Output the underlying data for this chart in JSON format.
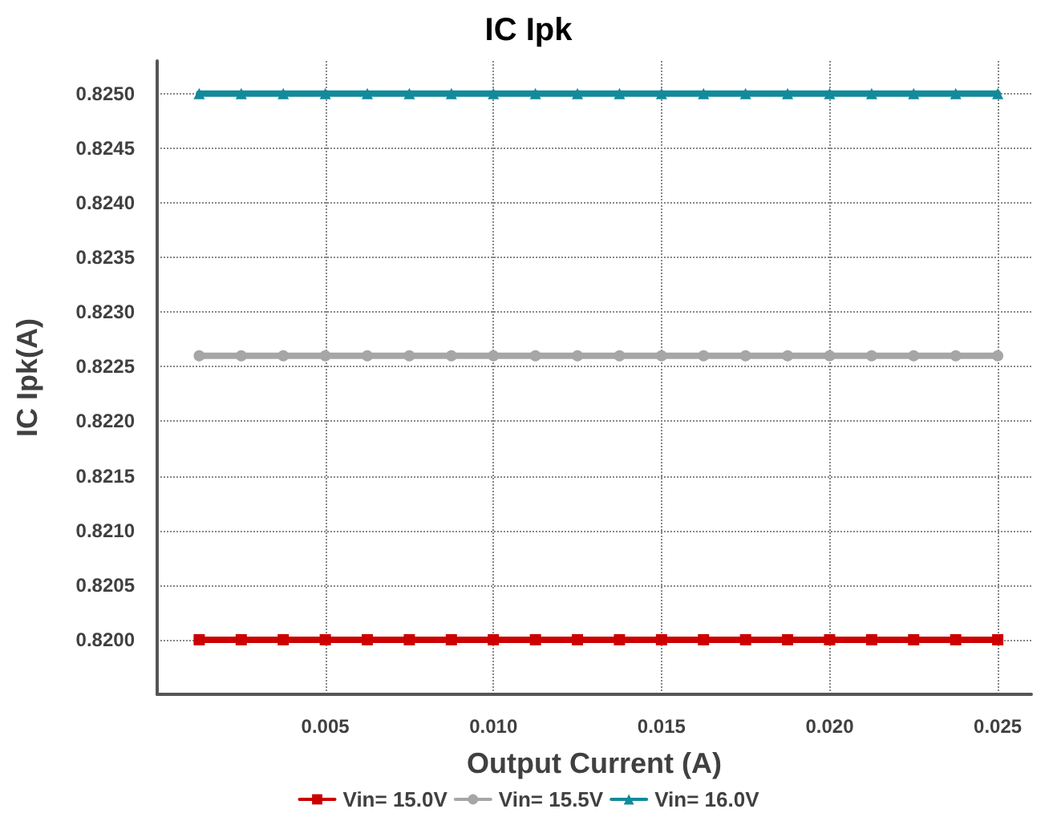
{
  "chart_data": {
    "type": "line",
    "title": "IC Ipk",
    "xlabel": "Output Current (A)",
    "ylabel": "IC Ipk(A)",
    "x": [
      0.00125,
      0.0025,
      0.00375,
      0.005,
      0.00625,
      0.0075,
      0.00875,
      0.01,
      0.01125,
      0.0125,
      0.01375,
      0.015,
      0.01625,
      0.0175,
      0.01875,
      0.02,
      0.02125,
      0.0225,
      0.02375,
      0.025
    ],
    "series": [
      {
        "name": "Vin= 15.0V",
        "color": "#cc0000",
        "marker": "square",
        "values": [
          0.82,
          0.82,
          0.82,
          0.82,
          0.82,
          0.82,
          0.82,
          0.82,
          0.82,
          0.82,
          0.82,
          0.82,
          0.82,
          0.82,
          0.82,
          0.82,
          0.82,
          0.82,
          0.82,
          0.82
        ]
      },
      {
        "name": "Vin= 15.5V",
        "color": "#a6a6a6",
        "marker": "circle",
        "values": [
          0.8226,
          0.8226,
          0.8226,
          0.8226,
          0.8226,
          0.8226,
          0.8226,
          0.8226,
          0.8226,
          0.8226,
          0.8226,
          0.8226,
          0.8226,
          0.8226,
          0.8226,
          0.8226,
          0.8226,
          0.8226,
          0.8226,
          0.8226
        ]
      },
      {
        "name": "Vin= 16.0V",
        "color": "#138a9a",
        "marker": "triangle",
        "values": [
          0.825,
          0.825,
          0.825,
          0.825,
          0.825,
          0.825,
          0.825,
          0.825,
          0.825,
          0.825,
          0.825,
          0.825,
          0.825,
          0.825,
          0.825,
          0.825,
          0.825,
          0.825,
          0.825,
          0.825
        ]
      }
    ],
    "xlim": [
      0,
      0.026
    ],
    "xticks": [
      {
        "value": 0.005,
        "label": "0.005"
      },
      {
        "value": 0.01,
        "label": "0.010"
      },
      {
        "value": 0.015,
        "label": "0.015"
      },
      {
        "value": 0.02,
        "label": "0.020"
      },
      {
        "value": 0.025,
        "label": "0.025"
      }
    ],
    "ylim": [
      0.8195,
      0.8253
    ],
    "yticks": [
      {
        "value": 0.82,
        "label": "0.8200"
      },
      {
        "value": 0.8205,
        "label": "0.8205"
      },
      {
        "value": 0.821,
        "label": "0.8210"
      },
      {
        "value": 0.8215,
        "label": "0.8215"
      },
      {
        "value": 0.822,
        "label": "0.8220"
      },
      {
        "value": 0.8225,
        "label": "0.8225"
      },
      {
        "value": 0.823,
        "label": "0.8230"
      },
      {
        "value": 0.8235,
        "label": "0.8235"
      },
      {
        "value": 0.824,
        "label": "0.8240"
      },
      {
        "value": 0.8245,
        "label": "0.8245"
      },
      {
        "value": 0.825,
        "label": "0.8250"
      }
    ],
    "grid": true,
    "legend": "bottom",
    "line_style": "solid"
  }
}
